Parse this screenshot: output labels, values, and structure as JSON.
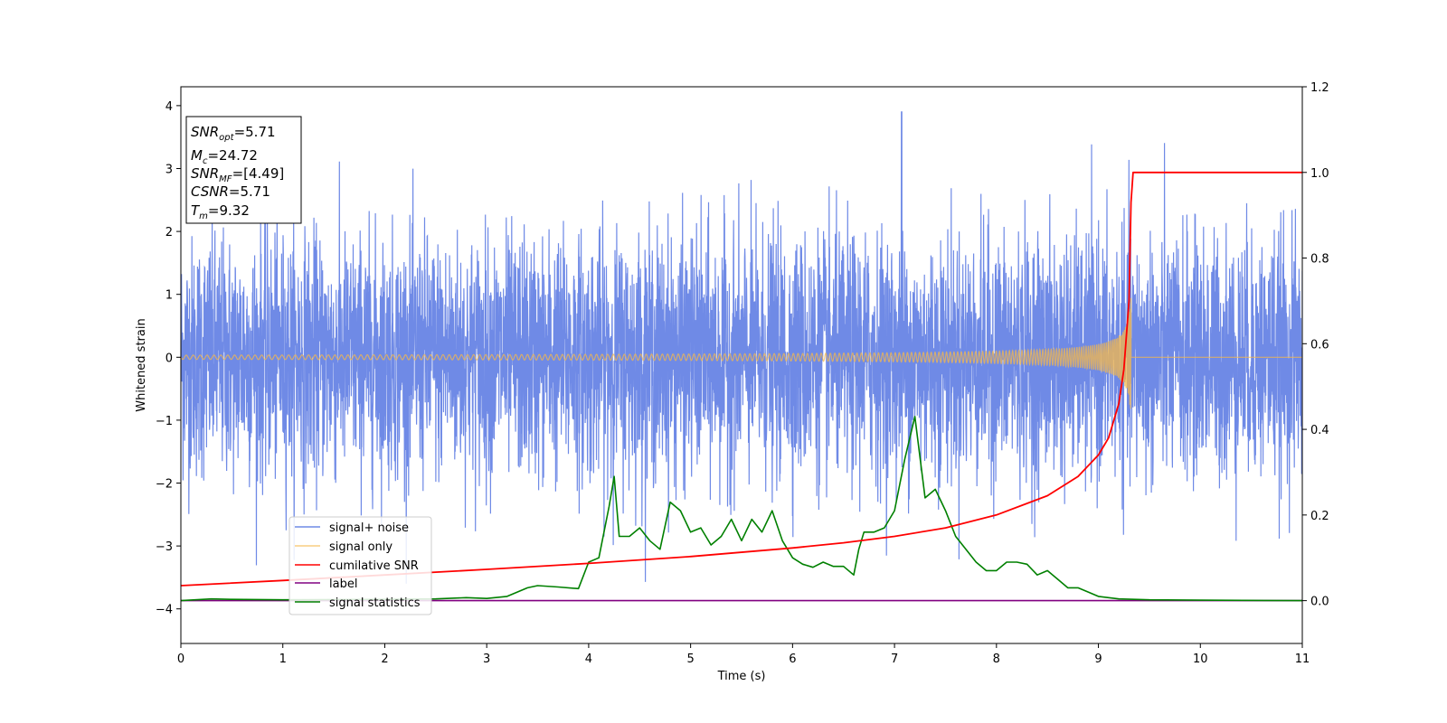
{
  "chart_data": {
    "type": "line",
    "title": "",
    "xlabel": "Time (s)",
    "ylabel": "Whitened strain",
    "ylabel_right": "",
    "xlim": [
      0,
      11
    ],
    "ylim": [
      -4.55,
      4.3
    ],
    "ylim_right": [
      -0.1,
      1.2
    ],
    "x_ticks": [
      0,
      1,
      2,
      3,
      4,
      5,
      6,
      7,
      8,
      9,
      10,
      11
    ],
    "y_ticks": [
      -4,
      -3,
      -2,
      -1,
      0,
      1,
      2,
      3,
      4
    ],
    "y_ticks_right": [
      0.0,
      0.2,
      0.4,
      0.6,
      0.8,
      1.0,
      1.2
    ],
    "grid": false,
    "legend_location": "lower-left",
    "legend": [
      "signal+ noise",
      "signal only",
      "cumilative SNR",
      "label",
      "signal statistics"
    ],
    "colors": {
      "signal_noise": "#6f8ae6",
      "signal_only": "#f5b84a",
      "cumulative_snr": "#ff0000",
      "label": "#800080",
      "signal_statistics": "#008000"
    },
    "annotation": {
      "snr_opt": {
        "main": "SNR",
        "sub": "opt",
        "value": "=5.71"
      },
      "mc": {
        "main": "M",
        "sub": "c",
        "value": "=24.72"
      },
      "snr_mf": {
        "main": "SNR",
        "sub": "MF",
        "value": "=[4.49]"
      },
      "csnr": {
        "main": "CSNR",
        "sub": "",
        "value": "=5.71"
      },
      "tm": {
        "main": "T",
        "sub": "m",
        "value": "=9.32"
      }
    },
    "signal_noise": {
      "axis": "left",
      "description_values": {
        "typical_range": [
          -2.2,
          2.2
        ],
        "min": -3.6,
        "max": 3.9,
        "max_at": 7.07,
        "duration": 11
      }
    },
    "signal_only": {
      "axis": "left",
      "merger_time": 9.32,
      "peak_amplitude": 1.0
    },
    "cumulative_snr": {
      "axis": "right",
      "x": [
        0,
        1,
        2,
        3,
        4,
        5,
        6,
        6.5,
        7,
        7.5,
        8,
        8.5,
        8.8,
        9.0,
        9.1,
        9.2,
        9.25,
        9.3,
        9.32,
        9.34,
        11
      ],
      "y": [
        0.035,
        0.047,
        0.06,
        0.073,
        0.087,
        0.103,
        0.123,
        0.135,
        0.15,
        0.17,
        0.2,
        0.245,
        0.29,
        0.34,
        0.38,
        0.46,
        0.54,
        0.7,
        0.93,
        1.0,
        1.0
      ]
    },
    "label": {
      "axis": "right",
      "x": [
        0,
        11
      ],
      "y": [
        0.0,
        0.0
      ]
    },
    "signal_statistics": {
      "axis": "right",
      "x": [
        0,
        0.3,
        0.5,
        1,
        2,
        2.5,
        2.8,
        3.0,
        3.2,
        3.4,
        3.5,
        3.7,
        3.9,
        4.0,
        4.1,
        4.2,
        4.25,
        4.3,
        4.4,
        4.5,
        4.6,
        4.7,
        4.8,
        4.9,
        5.0,
        5.1,
        5.2,
        5.3,
        5.4,
        5.5,
        5.6,
        5.7,
        5.8,
        5.9,
        6.0,
        6.1,
        6.2,
        6.3,
        6.4,
        6.5,
        6.6,
        6.65,
        6.7,
        6.8,
        6.9,
        7.0,
        7.1,
        7.2,
        7.3,
        7.4,
        7.5,
        7.6,
        7.7,
        7.8,
        7.9,
        8.0,
        8.1,
        8.2,
        8.3,
        8.4,
        8.5,
        8.6,
        8.7,
        8.8,
        8.9,
        9.0,
        9.2,
        9.5,
        10,
        11
      ],
      "y": [
        0.0,
        0.004,
        0.003,
        0.002,
        0.003,
        0.004,
        0.007,
        0.005,
        0.01,
        0.03,
        0.035,
        0.032,
        0.028,
        0.09,
        0.1,
        0.22,
        0.29,
        0.15,
        0.15,
        0.17,
        0.14,
        0.12,
        0.23,
        0.21,
        0.16,
        0.17,
        0.13,
        0.15,
        0.19,
        0.14,
        0.19,
        0.16,
        0.21,
        0.14,
        0.1,
        0.085,
        0.078,
        0.09,
        0.08,
        0.08,
        0.06,
        0.12,
        0.16,
        0.16,
        0.17,
        0.21,
        0.33,
        0.43,
        0.24,
        0.26,
        0.21,
        0.15,
        0.12,
        0.09,
        0.07,
        0.07,
        0.09,
        0.09,
        0.085,
        0.06,
        0.07,
        0.05,
        0.03,
        0.03,
        0.02,
        0.01,
        0.004,
        0.002,
        0.001,
        0.0
      ]
    }
  }
}
